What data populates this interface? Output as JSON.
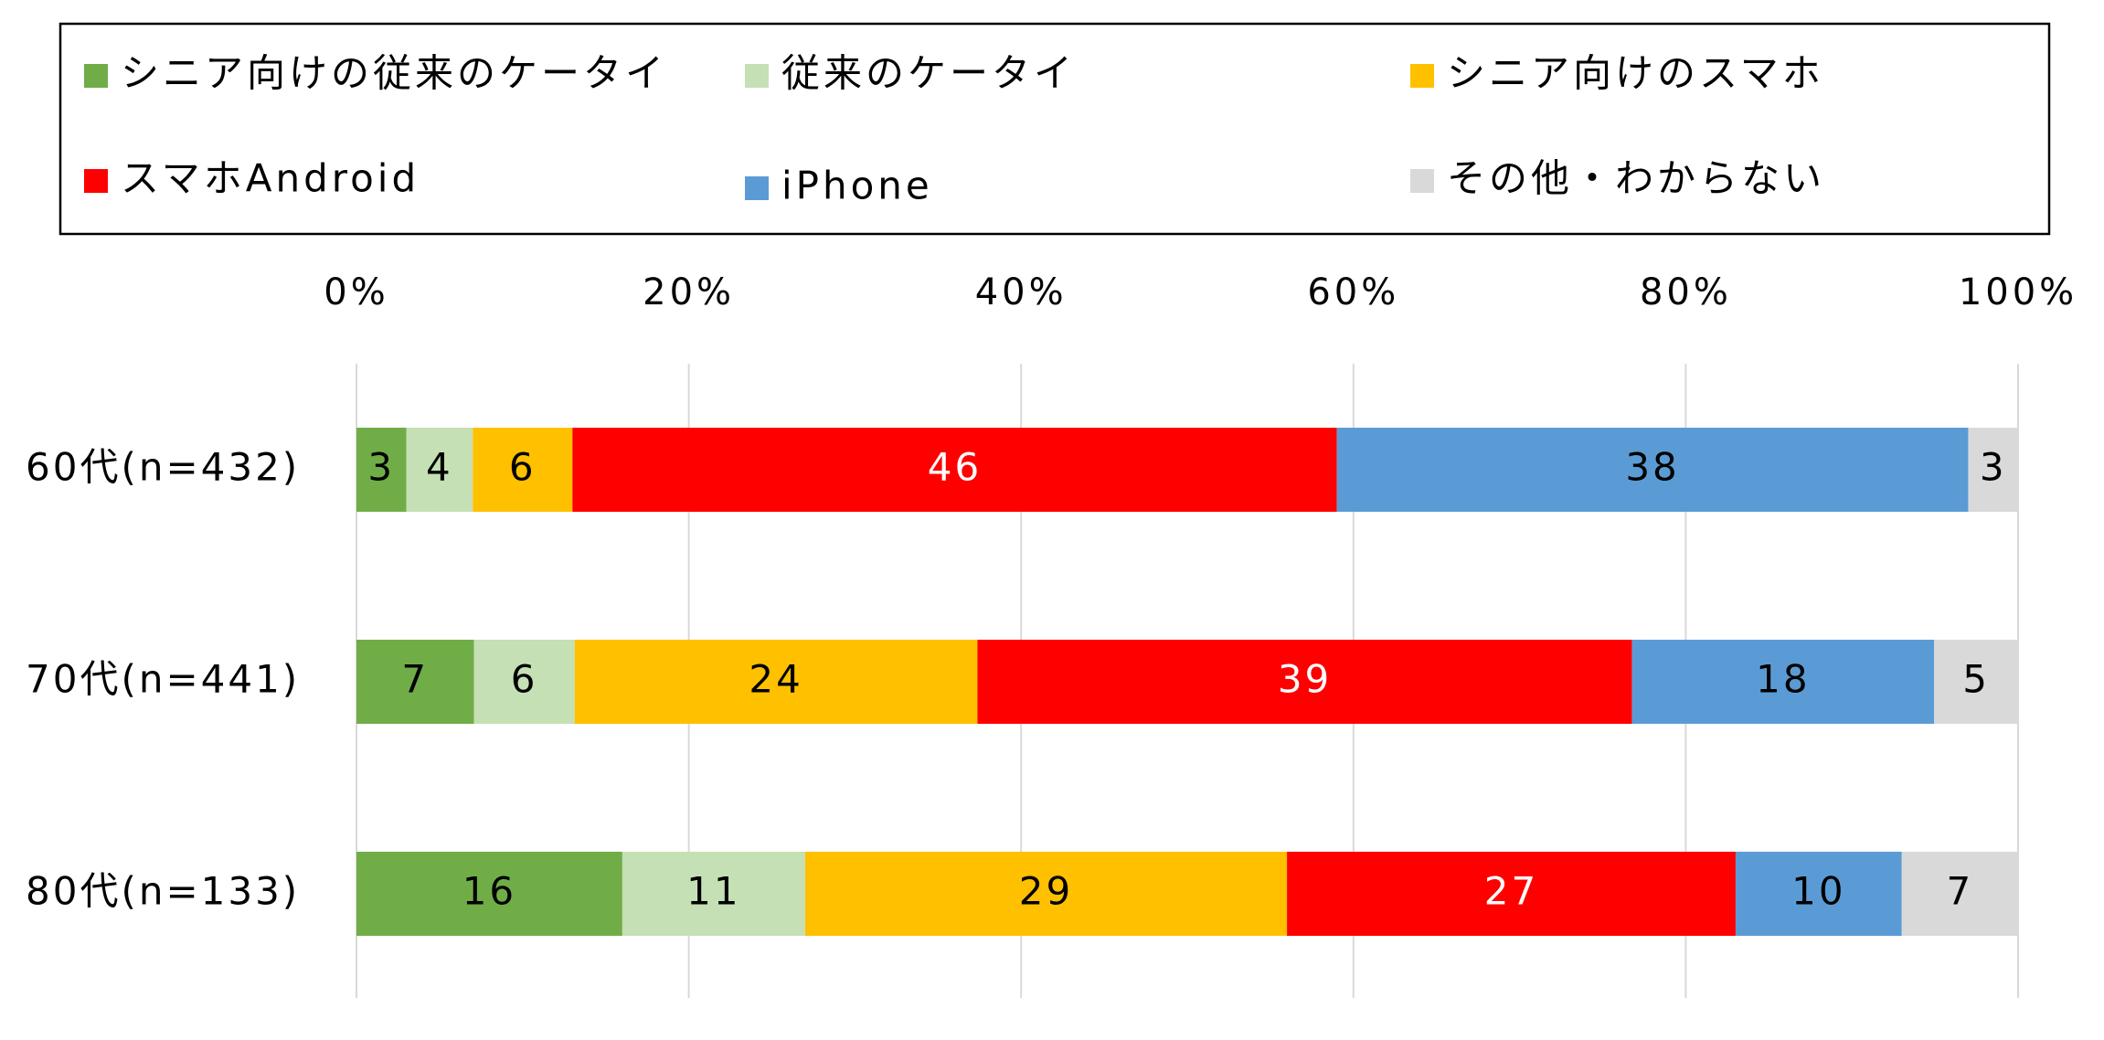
{
  "chart_data": {
    "type": "bar",
    "orientation": "horizontal",
    "stacked": true,
    "percent_stacked": true,
    "title": "",
    "xlabel": "",
    "ylabel": "",
    "xlim": [
      0,
      100
    ],
    "x_ticks": [
      "0%",
      "20%",
      "40%",
      "60%",
      "80%",
      "100%"
    ],
    "x_tick_values": [
      0,
      20,
      40,
      60,
      80,
      100
    ],
    "x_axis_position": "top",
    "grid": true,
    "legend_position": "top",
    "categories": [
      "60代(n=432)",
      "70代(n=441)",
      "80代(n=133)"
    ],
    "series": [
      {
        "name": "シニア向けの従来のケータイ",
        "color": "#70AD47",
        "label_color": "#000000",
        "values": [
          3,
          7,
          16
        ]
      },
      {
        "name": "従来のケータイ",
        "color": "#C5E0B4",
        "label_color": "#000000",
        "values": [
          4,
          6,
          11
        ]
      },
      {
        "name": "シニア向けのスマホ",
        "color": "#FFC000",
        "label_color": "#000000",
        "values": [
          6,
          24,
          29
        ]
      },
      {
        "name": "スマホAndroid",
        "color": "#FF0000",
        "label_color": "#FFFFFF",
        "values": [
          46,
          39,
          27
        ]
      },
      {
        "name": "iPhone",
        "color": "#5B9BD5",
        "label_color": "#000000",
        "values": [
          38,
          18,
          10
        ]
      },
      {
        "name": "その他・わからない",
        "color": "#D9D9D9",
        "label_color": "#000000",
        "values": [
          3,
          5,
          7
        ]
      }
    ]
  }
}
